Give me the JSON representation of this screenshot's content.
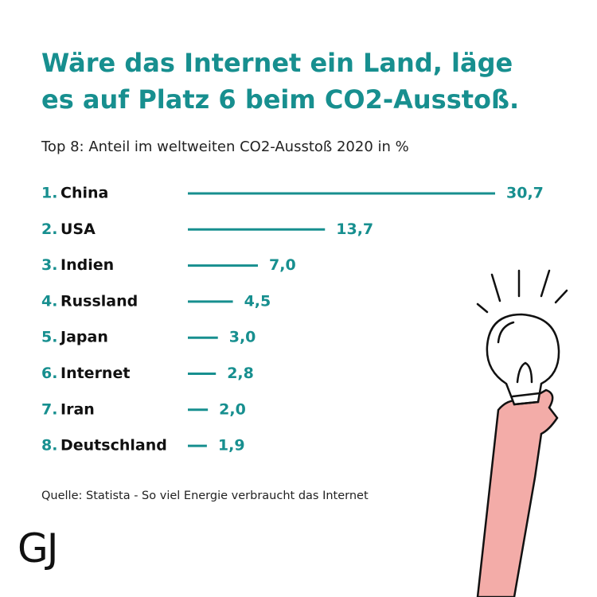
{
  "chart_data": {
    "type": "bar",
    "title": "Wäre das Internet ein Land, läge es auf Platz 6 beim CO2-Ausstoß.",
    "subtitle": "Top 8: Anteil im weltweiten CO2-Ausstoß 2020 in %",
    "ranks": [
      "1.",
      "2.",
      "3.",
      "4.",
      "5.",
      "6.",
      "7.",
      "8."
    ],
    "categories": [
      "China",
      "USA",
      "Indien",
      "Russland",
      "Japan",
      "Internet",
      "Iran",
      "Deutschland"
    ],
    "values": [
      30.7,
      13.7,
      7.0,
      4.5,
      3.0,
      2.8,
      2.0,
      1.9
    ],
    "value_labels": [
      "30,7",
      "13,7",
      "7,0",
      "4,5",
      "3,0",
      "2,8",
      "2,0",
      "1,9"
    ],
    "color": "#178f8f",
    "source": "Quelle: Statista - So viel Energie verbraucht das Internet",
    "logo": "GJ"
  }
}
